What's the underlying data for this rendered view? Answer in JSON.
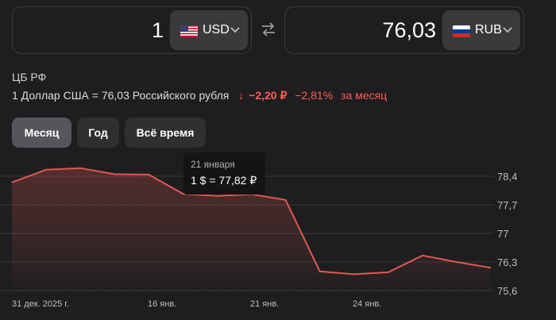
{
  "converter": {
    "from": {
      "amount": "1",
      "currency": "USD"
    },
    "to": {
      "amount": "76,03",
      "currency": "RUB"
    }
  },
  "source": "ЦБ РФ",
  "rate": {
    "text": "1 Доллар США = 76,03 Российского рубля",
    "arrow": "↓",
    "change_abs": "−2,20 ₽",
    "change_pct": "−2,81%",
    "period": "за месяц"
  },
  "tabs": [
    {
      "label": "Месяц",
      "active": true
    },
    {
      "label": "Год",
      "active": false
    },
    {
      "label": "Всё время",
      "active": false
    }
  ],
  "tooltip": {
    "date": "21 января",
    "value": "1 $ = 77,82 ₽"
  },
  "colors": {
    "line": "#e0584f",
    "accent_down": "#ff5a55"
  },
  "chart_data": {
    "type": "area",
    "x_ticks": [
      "31 дек. 2025 г.",
      "16 янв.",
      "21 янв.",
      "24 янв."
    ],
    "y_ticks": [
      "78,4",
      "77,7",
      "77",
      "76,3",
      "75,6"
    ],
    "y_tick_values": [
      78.4,
      77.7,
      77.0,
      76.3,
      75.6
    ],
    "ylim": [
      75.6,
      78.4
    ],
    "series": [
      {
        "values": [
          78.25,
          78.56,
          78.6,
          78.45,
          78.44,
          77.97,
          77.92,
          77.96,
          77.82,
          76.07,
          76.0,
          76.05,
          76.46,
          76.3,
          76.16
        ]
      }
    ],
    "grid": true
  }
}
